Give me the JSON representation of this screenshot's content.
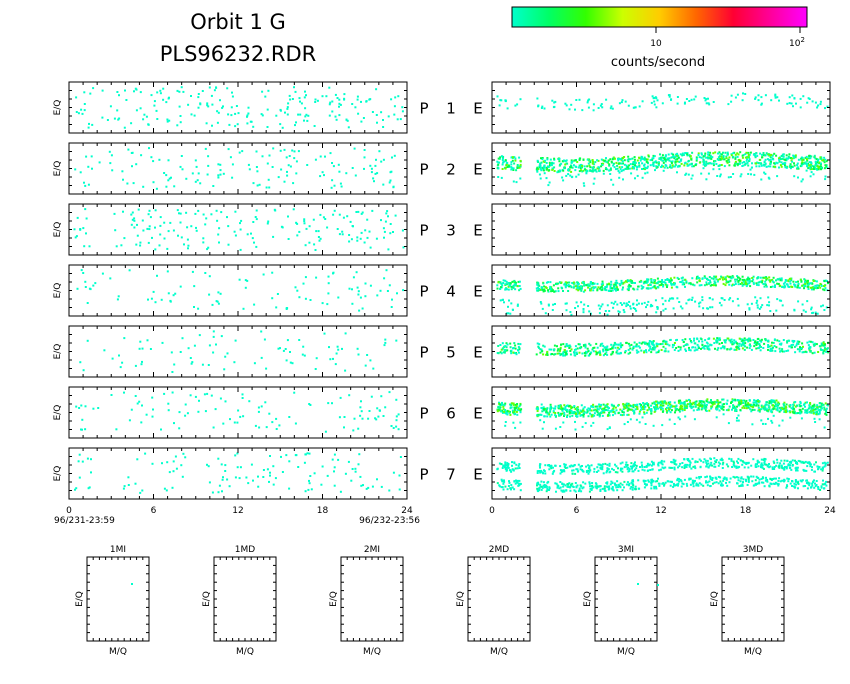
{
  "header": {
    "title_line1": "Orbit 1 G",
    "title_line2": "PLS96232.RDR"
  },
  "colorbar": {
    "label": "counts/second",
    "tick_10": "10",
    "tick_100_base": "10",
    "tick_100_exp": "2",
    "colors": [
      "#00ffcc",
      "#00ff66",
      "#33ff00",
      "#ccff00",
      "#ffcc00",
      "#ff6600",
      "#ff0033",
      "#ff0099",
      "#ff00ff"
    ]
  },
  "chart_data": {
    "type": "heatmap",
    "ylabel": "E/Q",
    "x_ticks": [
      "0",
      "6",
      "12",
      "18",
      "24"
    ],
    "xlim": [
      0,
      24
    ],
    "start_label": "96/231-23:59",
    "end_label": "96/232-23:56",
    "rows": [
      {
        "p": "P",
        "n": "1",
        "e": "E",
        "left_density": 0.3,
        "right_density": 0.12,
        "right_band": "sparse"
      },
      {
        "p": "P",
        "n": "2",
        "e": "E",
        "left_density": 0.22,
        "right_density": 0.55,
        "right_band": "wide"
      },
      {
        "p": "P",
        "n": "3",
        "e": "E",
        "left_density": 0.28,
        "right_density": 0.0,
        "right_band": "none"
      },
      {
        "p": "P",
        "n": "4",
        "e": "E",
        "left_density": 0.14,
        "right_density": 0.5,
        "right_band": "double"
      },
      {
        "p": "P",
        "n": "5",
        "e": "E",
        "left_density": 0.12,
        "right_density": 0.55,
        "right_band": "single"
      },
      {
        "p": "P",
        "n": "6",
        "e": "E",
        "left_density": 0.16,
        "right_density": 0.65,
        "right_band": "strong"
      },
      {
        "p": "P",
        "n": "7",
        "e": "E",
        "left_density": 0.18,
        "right_density": 0.5,
        "right_band": "twin"
      }
    ],
    "right_gap_hours": [
      2.0,
      3.1
    ]
  },
  "small_panels": [
    {
      "title": "1MI",
      "xlabel": "M/Q",
      "ylabel": "E/Q"
    },
    {
      "title": "1MD",
      "xlabel": "M/Q",
      "ylabel": "E/Q"
    },
    {
      "title": "2MI",
      "xlabel": "M/Q",
      "ylabel": "E/Q"
    },
    {
      "title": "2MD",
      "xlabel": "M/Q",
      "ylabel": "E/Q"
    },
    {
      "title": "3MI",
      "xlabel": "M/Q",
      "ylabel": "E/Q"
    },
    {
      "title": "3MD",
      "xlabel": "M/Q",
      "ylabel": "E/Q"
    }
  ]
}
